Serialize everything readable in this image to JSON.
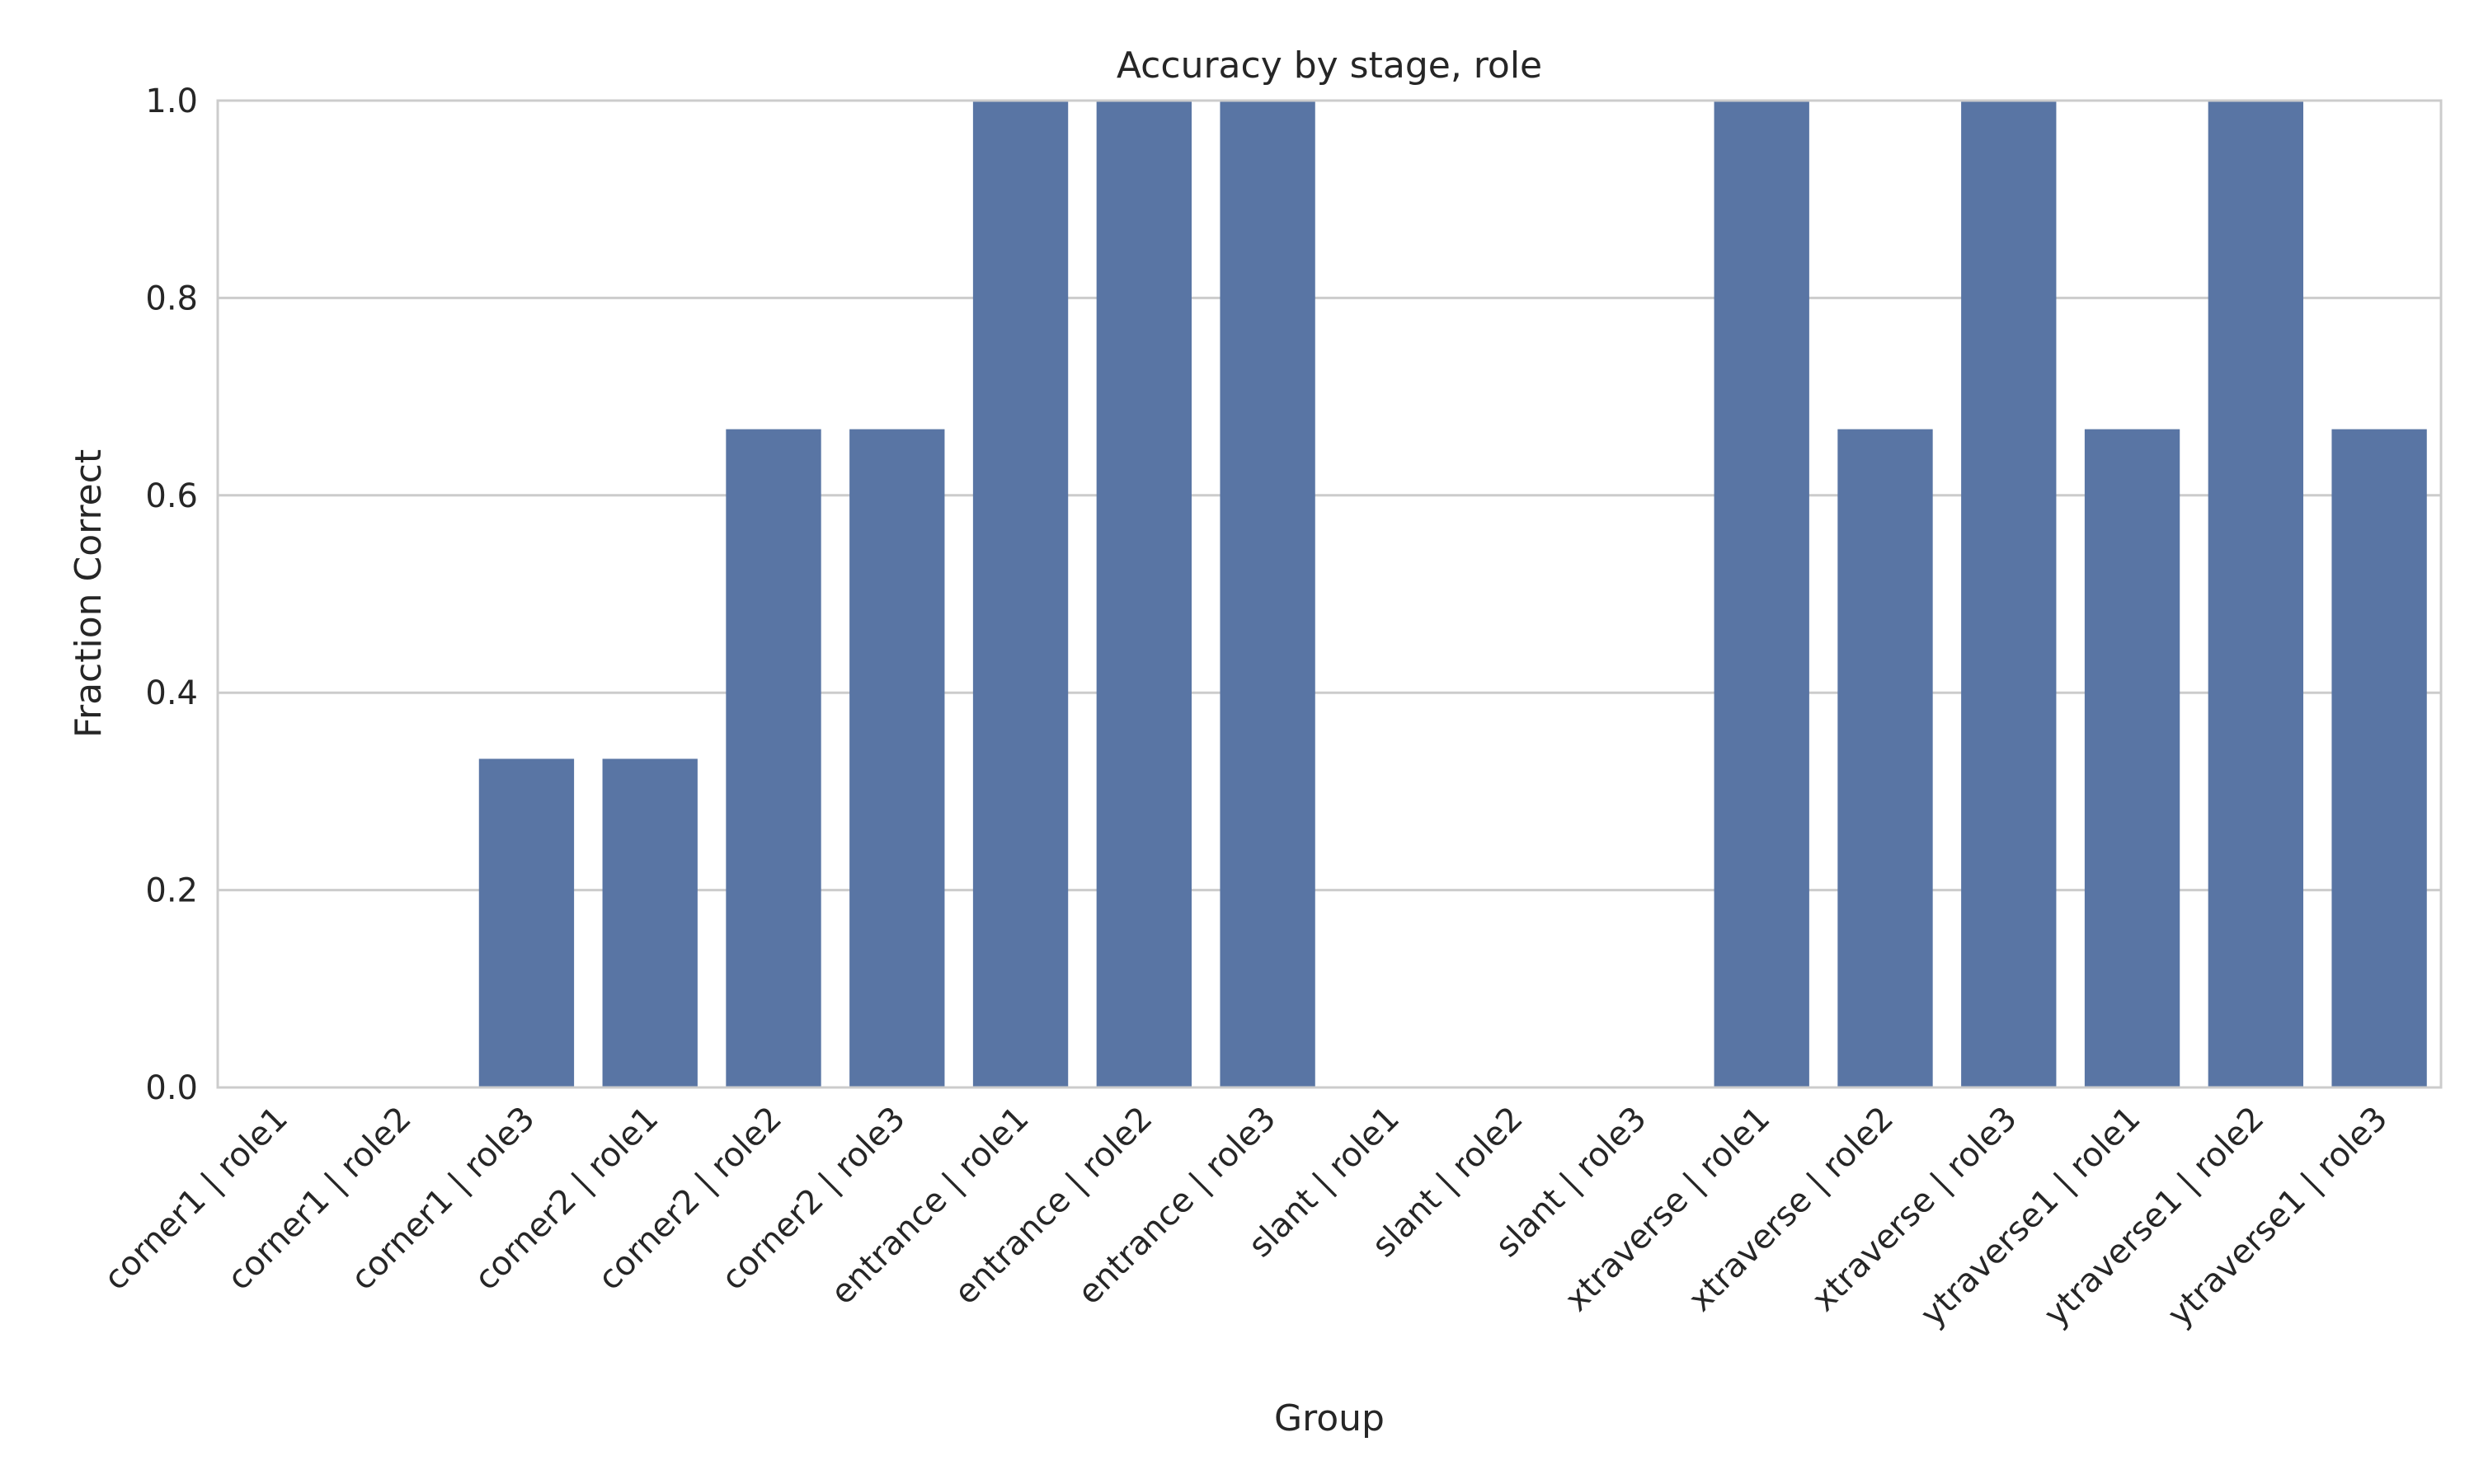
{
  "chart_data": {
    "type": "bar",
    "title": "Accuracy by stage, role",
    "xlabel": "Group",
    "ylabel": "Fraction Correct",
    "ylim": [
      0,
      1.0
    ],
    "yticks": [
      "0.0",
      "0.2",
      "0.4",
      "0.6",
      "0.8",
      "1.0"
    ],
    "grid": "on",
    "categories": [
      "corner1 | role1",
      "corner1 | role2",
      "corner1 | role3",
      "corner2 | role1",
      "corner2 | role2",
      "corner2 | role3",
      "entrance | role1",
      "entrance | role2",
      "entrance | role3",
      "slant | role1",
      "slant | role2",
      "slant | role3",
      "xtraverse | role1",
      "xtraverse | role2",
      "xtraverse | role3",
      "ytraverse1 | role1",
      "ytraverse1 | role2",
      "ytraverse1 | role3"
    ],
    "values": [
      0,
      0,
      0.333,
      0.333,
      0.667,
      0.667,
      1.0,
      1.0,
      1.0,
      0,
      0,
      0,
      1.0,
      0.667,
      1.0,
      0.667,
      1.0,
      0.667
    ],
    "colors": {
      "bar": "#5975a4",
      "grid": "#cccccc",
      "spine": "#cccccc",
      "text": "#262626"
    }
  }
}
